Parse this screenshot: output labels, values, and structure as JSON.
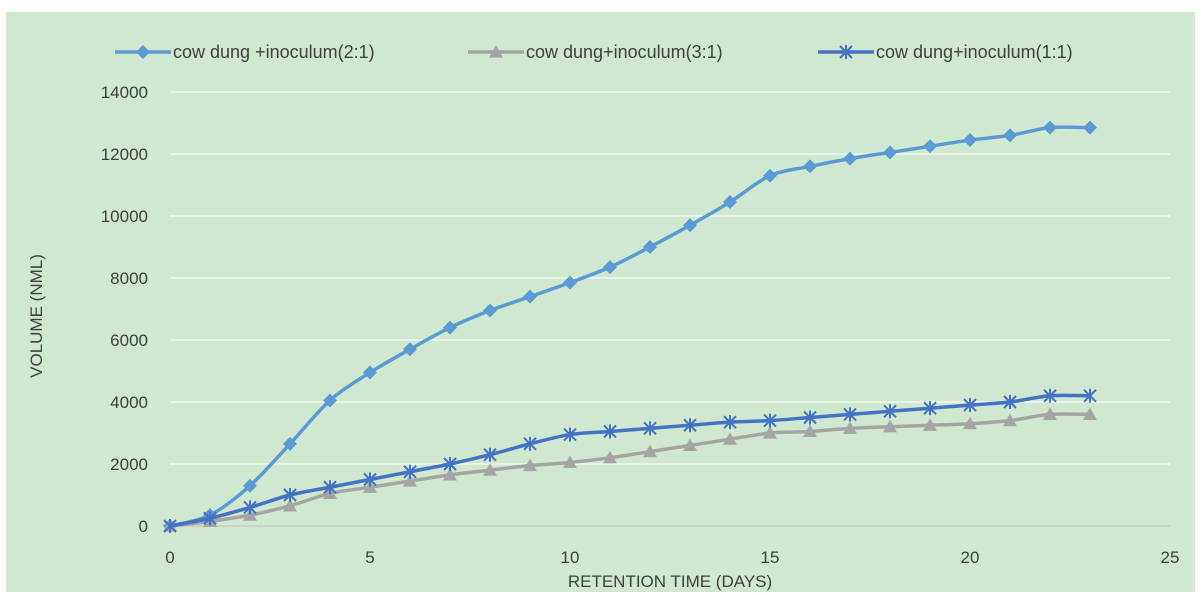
{
  "chart_data": {
    "type": "line",
    "title": "",
    "xlabel": "RETENTION TIME (DAYS)",
    "ylabel": "VOLUME (NML)",
    "xlim": [
      0,
      25
    ],
    "ylim": [
      0,
      14000
    ],
    "x_ticks": [
      "0",
      "5",
      "10",
      "15",
      "20",
      "25"
    ],
    "y_ticks": [
      "0",
      "2000",
      "4000",
      "6000",
      "8000",
      "10000",
      "12000",
      "14000"
    ],
    "grid": "horizontal",
    "legend_position": "top",
    "x": [
      0,
      1,
      2,
      3,
      4,
      5,
      6,
      7,
      8,
      9,
      10,
      11,
      12,
      13,
      14,
      15,
      16,
      17,
      18,
      19,
      20,
      21,
      22,
      23
    ],
    "series": [
      {
        "name": "cow dung +inoculum(2:1)",
        "color": "#5b9bd5",
        "marker": "diamond",
        "values": [
          0,
          350,
          1300,
          2650,
          4050,
          4950,
          5700,
          6400,
          6950,
          7400,
          7850,
          8350,
          9000,
          9700,
          10450,
          11300,
          11600,
          11850,
          12050,
          12250,
          12450,
          12600,
          12850,
          12850
        ]
      },
      {
        "name": "cow dung+inoculum(3:1)",
        "color": "#a5a5a5",
        "marker": "triangle",
        "values": [
          0,
          150,
          350,
          650,
          1050,
          1250,
          1450,
          1650,
          1800,
          1950,
          2050,
          2200,
          2400,
          2600,
          2800,
          3000,
          3050,
          3150,
          3200,
          3250,
          3300,
          3400,
          3600,
          3600
        ]
      },
      {
        "name": "cow dung+inoculum(1:1)",
        "color": "#4472c4",
        "marker": "star",
        "values": [
          0,
          250,
          600,
          1000,
          1250,
          1500,
          1750,
          2000,
          2300,
          2650,
          2950,
          3050,
          3150,
          3250,
          3350,
          3400,
          3500,
          3600,
          3700,
          3800,
          3900,
          4000,
          4200,
          4200
        ]
      }
    ]
  }
}
